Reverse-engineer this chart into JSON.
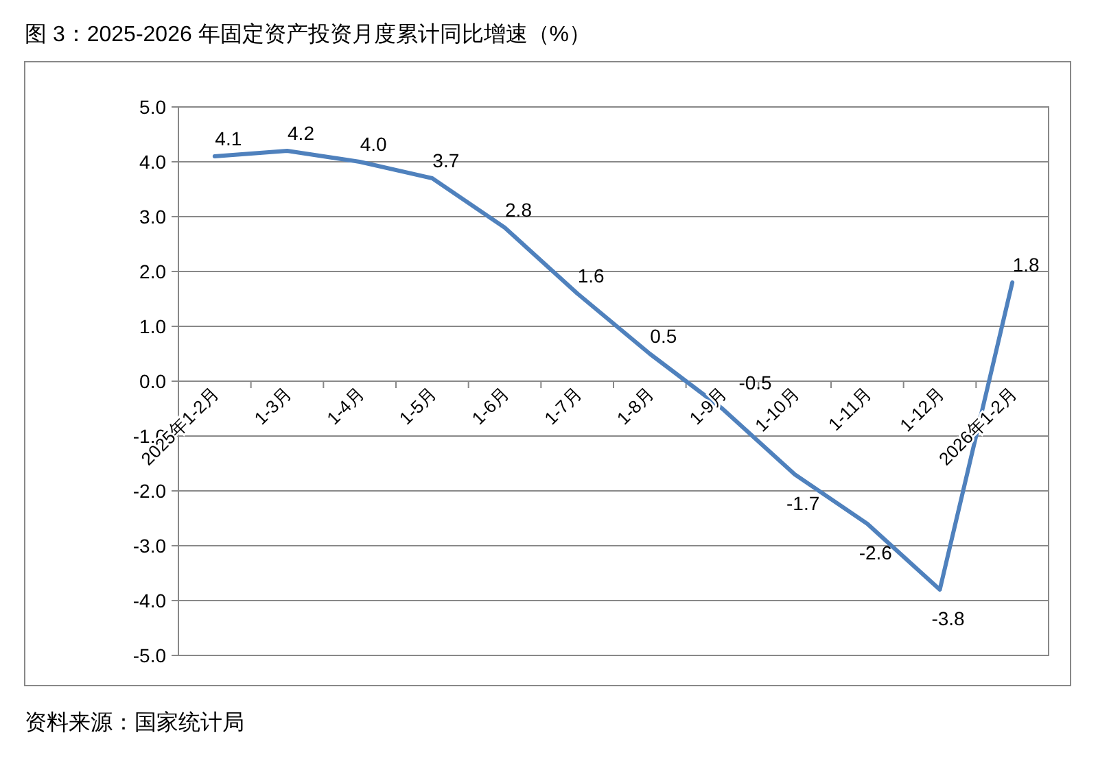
{
  "chart_data": {
    "type": "line",
    "title": "图 3：2025-2026 年固定资产投资月度累计同比增速（%）",
    "categories": [
      "2025年1-2月",
      "1-3月",
      "1-4月",
      "1-5月",
      "1-6月",
      "1-7月",
      "1-8月",
      "1-9月",
      "1-10月",
      "1-11月",
      "1-12月",
      "2026年1-2月"
    ],
    "series": [
      {
        "color": "#4f81bd",
        "values": [
          4.1,
          4.2,
          4.0,
          3.7,
          2.8,
          1.6,
          0.5,
          -0.5,
          -1.7,
          -2.6,
          -3.8,
          1.8
        ],
        "value_labels": [
          "4.1",
          "4.2",
          "4.0",
          "3.7",
          "2.8",
          "1.6",
          "0.5",
          "-0.5",
          "-1.7",
          "-2.6",
          "-3.8",
          "1.8"
        ]
      }
    ],
    "ylim": [
      -5,
      5
    ],
    "yticks": [
      {
        "value": -5,
        "label": "-5.0"
      },
      {
        "value": -4,
        "label": "-4.0"
      },
      {
        "value": -3,
        "label": "-3.0"
      },
      {
        "value": -2,
        "label": "-2.0"
      },
      {
        "value": -1,
        "label": "-1.0"
      },
      {
        "value": 0,
        "label": "0.0"
      },
      {
        "value": 1,
        "label": "1.0"
      },
      {
        "value": 2,
        "label": "2.0"
      },
      {
        "value": 3,
        "label": "3.0"
      },
      {
        "value": 4,
        "label": "4.0"
      },
      {
        "value": 5,
        "label": "5.0"
      }
    ],
    "grid": "y",
    "marker": "none",
    "line_style": "solid",
    "annotations": [
      "资料来源：国家统计局"
    ]
  }
}
